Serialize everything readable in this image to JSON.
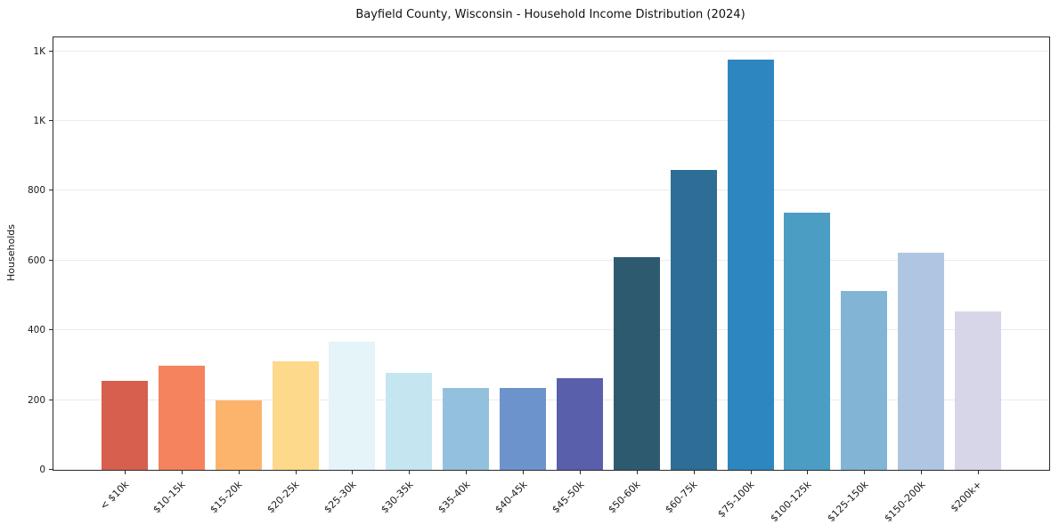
{
  "chart_data": {
    "type": "bar",
    "title": "Bayfield County, Wisconsin - Household Income Distribution (2024)",
    "xlabel": "",
    "ylabel": "Households",
    "categories": [
      "< $10k",
      "$10-15k",
      "$15-20k",
      "$20-25k",
      "$25-30k",
      "$30-35k",
      "$35-40k",
      "$40-45k",
      "$45-50k",
      "$50-60k",
      "$60-75k",
      "$75-100k",
      "$100-125k",
      "$125-150k",
      "$150-200k",
      "$200k+"
    ],
    "values": [
      255,
      298,
      200,
      311,
      367,
      277,
      236,
      236,
      264,
      610,
      860,
      1175,
      738,
      513,
      622,
      453
    ],
    "bar_colors": [
      "#d6604d",
      "#f4835e",
      "#fcb46c",
      "#fdda8b",
      "#e4f4f8",
      "#c5e6f1",
      "#93c1dd",
      "#6d93cc",
      "#5a5fab",
      "#2e5a70",
      "#2d6d96",
      "#2e86c1",
      "#4c9dc4",
      "#82b4d6",
      "#aec6e2",
      "#d6d6e8"
    ],
    "yticks": [
      {
        "value": 0,
        "label": "0"
      },
      {
        "value": 200,
        "label": "200"
      },
      {
        "value": 400,
        "label": "400"
      },
      {
        "value": 600,
        "label": "600"
      },
      {
        "value": 800,
        "label": "800"
      },
      {
        "value": 1000,
        "label": "1K"
      },
      {
        "value": 1200,
        "label": "1K"
      }
    ],
    "ylim": [
      0,
      1240
    ],
    "grid": true,
    "legend_position": "none"
  }
}
